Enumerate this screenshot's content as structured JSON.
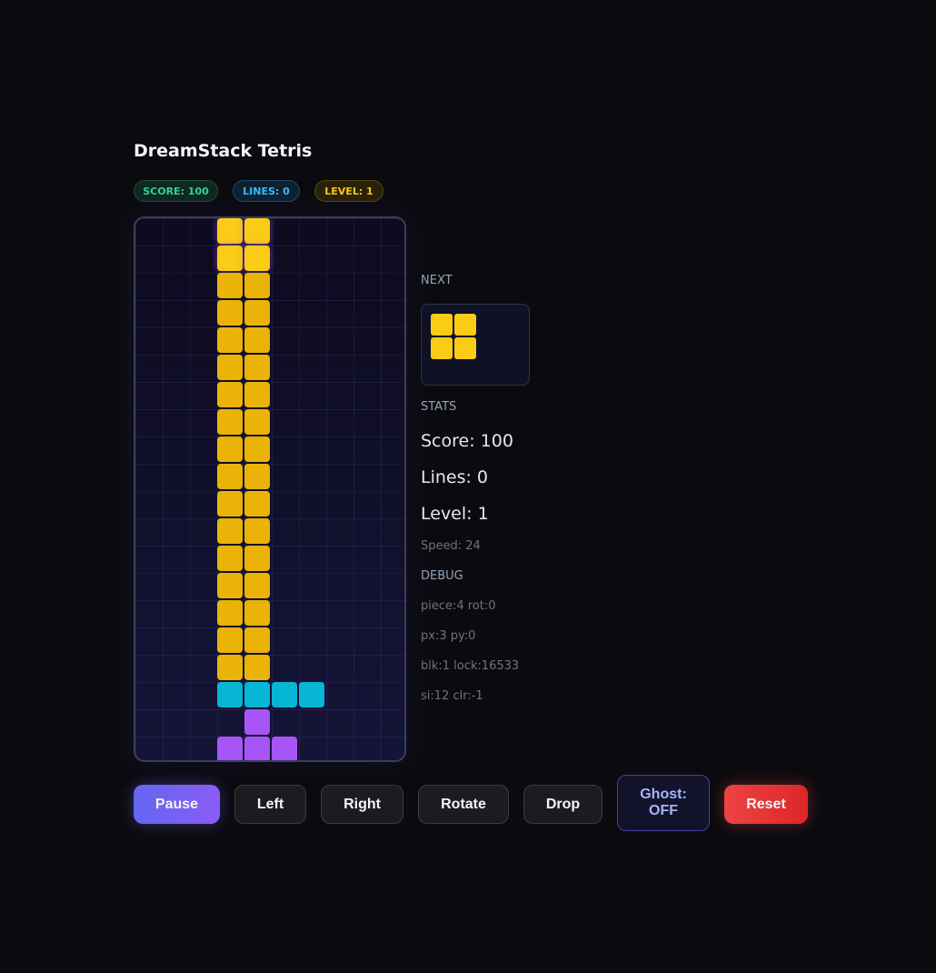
{
  "title": "DreamStack Tetris",
  "badges": {
    "score": "SCORE: 100",
    "lines": "LINES: 0",
    "level": "LEVEL: 1"
  },
  "colors": {
    "O": "#eab308",
    "A": "#facc15",
    "I": "#06b6d4",
    "T": "#a855f7"
  },
  "board": [
    "...AA.....",
    "...AA.....",
    "...OO.....",
    "...OO.....",
    "...OO.....",
    "...OO.....",
    "...OO.....",
    "...OO.....",
    "...OO.....",
    "...OO.....",
    "...OO.....",
    "...OO.....",
    "...OO.....",
    "...OO.....",
    "...OO.....",
    "...OO.....",
    "...OO.....",
    "...IIII...",
    "....T.....",
    "...TTT...."
  ],
  "side": {
    "next_label": "NEXT",
    "stats_label": "STATS",
    "score": "Score: 100",
    "lines": "Lines: 0",
    "level": "Level: 1",
    "speed": "Speed: 24",
    "debug_label": "DEBUG",
    "debug": [
      "piece:4 rot:0",
      "px:3 py:0",
      "blk:1 lock:16533",
      "si:12 clr:-1"
    ]
  },
  "buttons": {
    "pause": "Pause",
    "left": "Left",
    "right": "Right",
    "rotate": "Rotate",
    "drop": "Drop",
    "ghost": "Ghost: OFF",
    "reset": "Reset"
  }
}
